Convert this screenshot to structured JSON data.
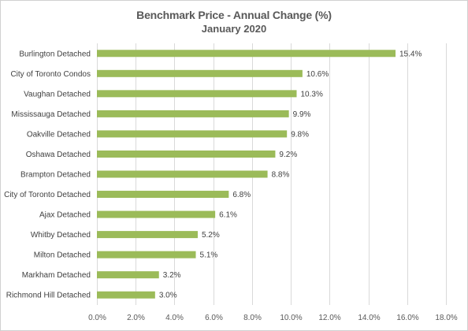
{
  "chart_data": {
    "type": "bar",
    "orientation": "horizontal",
    "title": "Benchmark Price - Annual Change (%)",
    "subtitle": "January 2020",
    "categories": [
      "Burlington Detached",
      "City of Toronto Condos",
      "Vaughan Detached",
      "Mississauga Detached",
      "Oakville Detached",
      "Oshawa Detached",
      "Brampton Detached",
      "City of Toronto Detached",
      "Ajax Detached",
      "Whitby Detached",
      "Milton Detached",
      "Markham Detached",
      "Richmond Hill Detached"
    ],
    "values": [
      15.4,
      10.6,
      10.3,
      9.9,
      9.8,
      9.2,
      8.8,
      6.8,
      6.1,
      5.2,
      5.1,
      3.2,
      3.0
    ],
    "value_labels": [
      "15.4%",
      "10.6%",
      "10.3%",
      "9.9%",
      "9.8%",
      "9.2%",
      "8.8%",
      "6.8%",
      "6.1%",
      "5.2%",
      "5.1%",
      "3.2%",
      "3.0%"
    ],
    "xlim": [
      0,
      18
    ],
    "xticks": [
      "0.0%",
      "2.0%",
      "4.0%",
      "6.0%",
      "8.0%",
      "10.0%",
      "12.0%",
      "14.0%",
      "16.0%",
      "18.0%"
    ],
    "xlabel": "",
    "ylabel": "",
    "grid": "vertical",
    "legend": "none",
    "bar_color": "#9bbb59",
    "grid_color": "#d9d9d9"
  }
}
